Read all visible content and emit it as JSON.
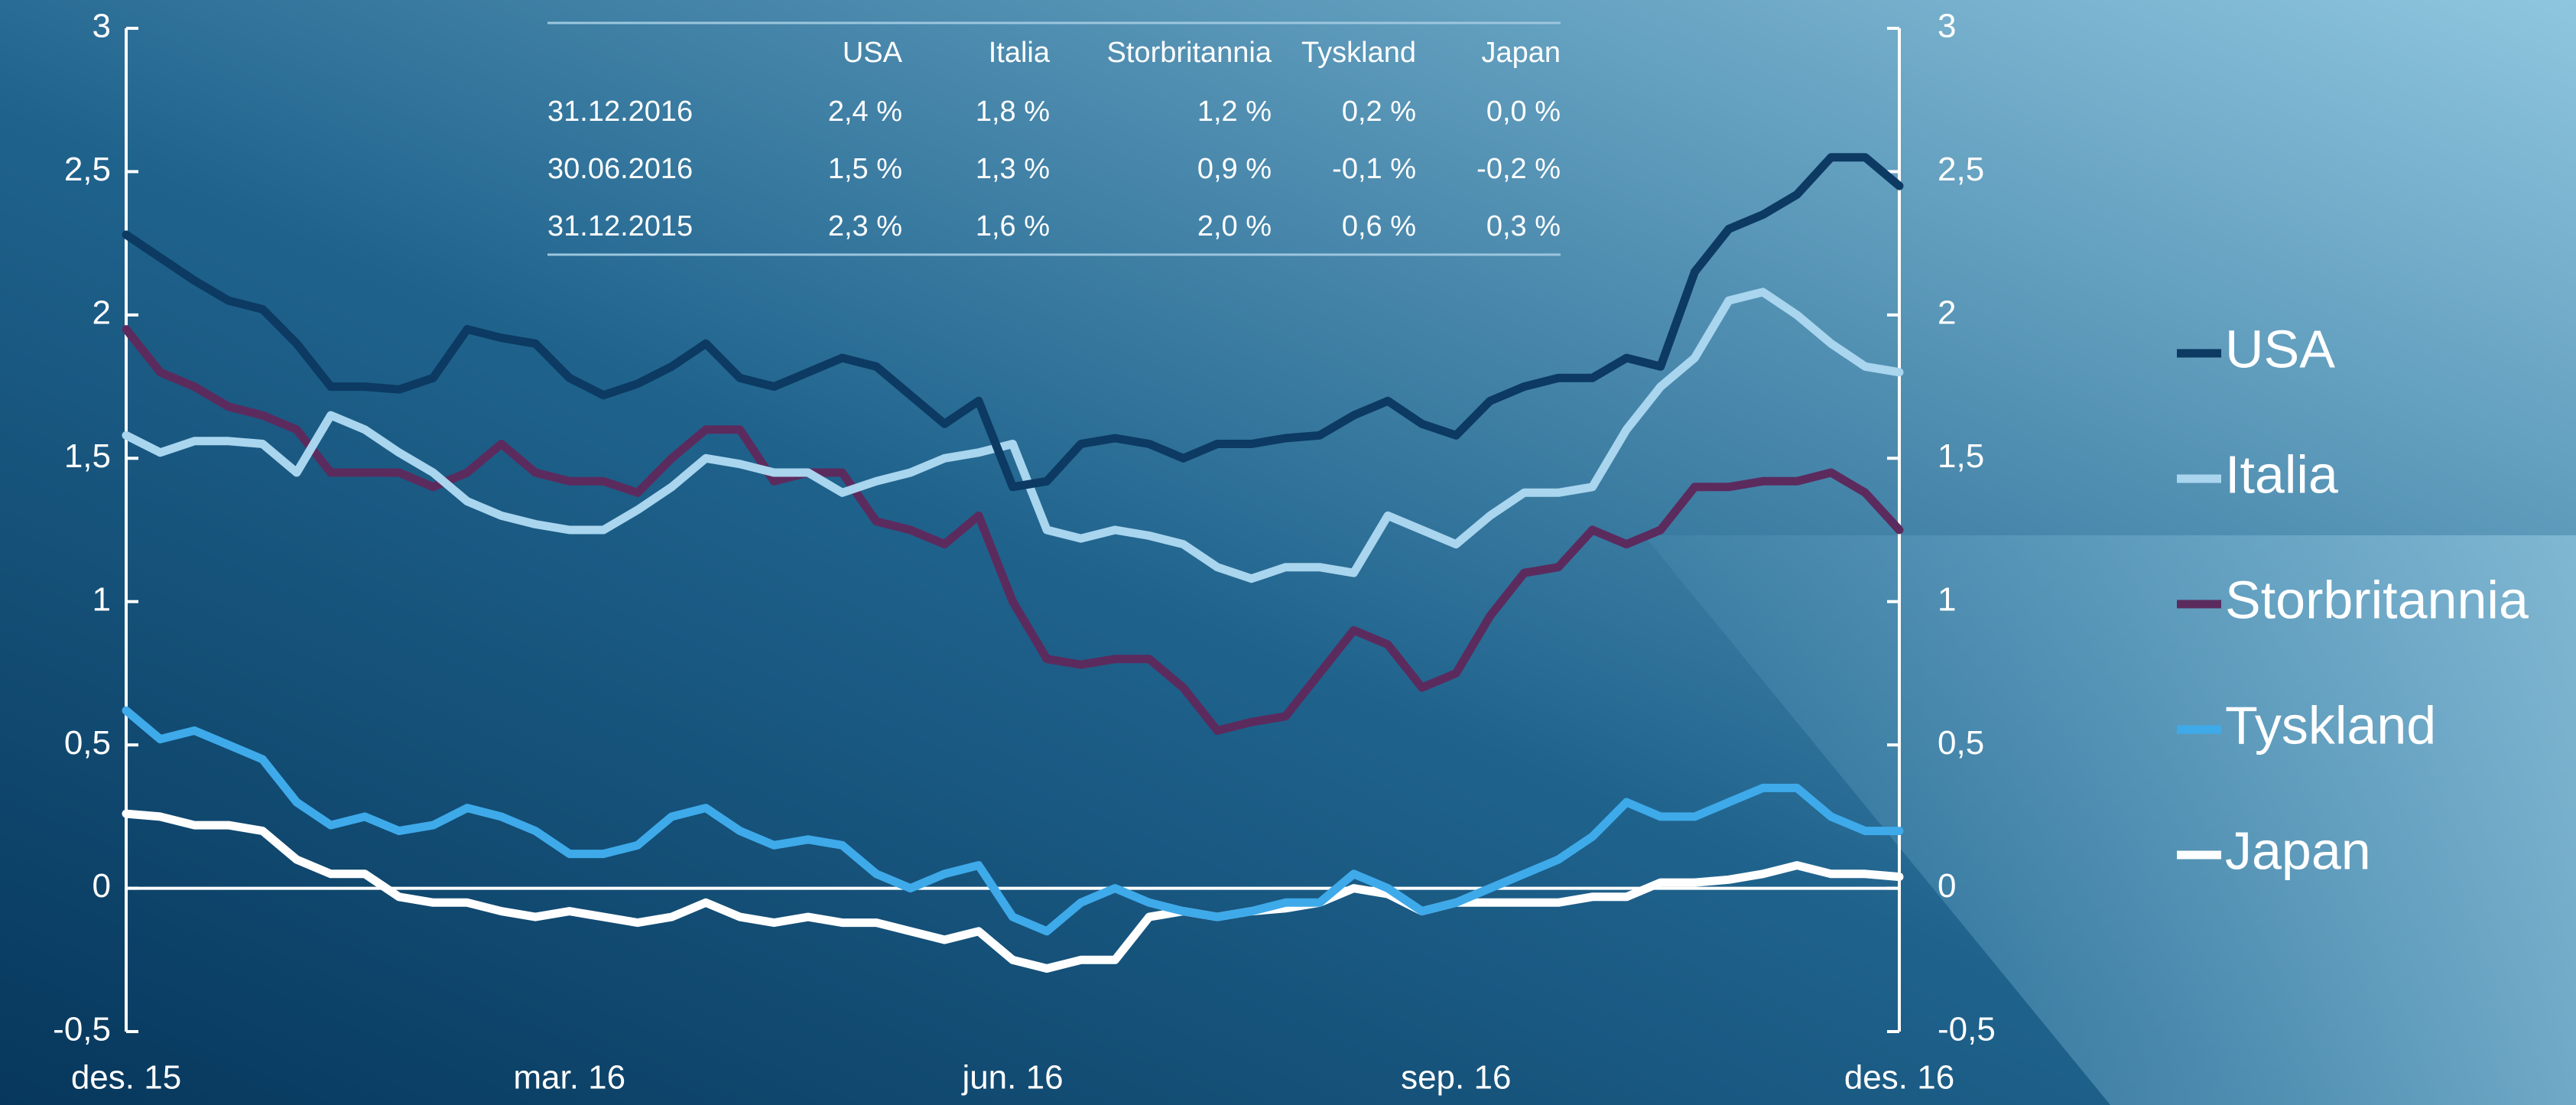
{
  "chart_data": {
    "type": "line",
    "categories": [
      "des. 15",
      null,
      null,
      null,
      null,
      null,
      null,
      null,
      null,
      null,
      null,
      null,
      null,
      "mar. 16",
      null,
      null,
      null,
      null,
      null,
      null,
      null,
      null,
      null,
      null,
      null,
      null,
      "jun. 16",
      null,
      null,
      null,
      null,
      null,
      null,
      null,
      null,
      null,
      null,
      null,
      null,
      "sep. 16",
      null,
      null,
      null,
      null,
      null,
      null,
      null,
      null,
      null,
      null,
      null,
      null,
      "des. 16"
    ],
    "ylim": [
      -0.5,
      3
    ],
    "yticks": [
      {
        "value": -0.5,
        "label": "-0,5"
      },
      0,
      {
        "value": 0.5,
        "label": "0,5"
      },
      1,
      {
        "value": 1.5,
        "label": "1,5"
      },
      2,
      {
        "value": 2.5,
        "label": "2,5"
      },
      3
    ],
    "y2lim": [
      -0.5,
      3
    ],
    "y2ticks": [
      {
        "value": -0.5,
        "label": "-0,5"
      },
      0,
      {
        "value": 0.5,
        "label": "0,5"
      },
      1,
      {
        "value": 1.5,
        "label": "1,5"
      },
      2,
      {
        "value": 2.5,
        "label": "2,5"
      },
      3
    ],
    "legend": "right",
    "series": [
      {
        "name": "USA",
        "color": "#0c3a62",
        "values": [
          2.28,
          2.2,
          2.12,
          2.05,
          2.02,
          1.9,
          1.75,
          1.75,
          1.74,
          1.78,
          1.95,
          1.92,
          1.9,
          1.78,
          1.72,
          1.76,
          1.82,
          1.9,
          1.78,
          1.75,
          1.8,
          1.85,
          1.82,
          1.72,
          1.62,
          1.7,
          1.4,
          1.42,
          1.55,
          1.57,
          1.55,
          1.5,
          1.55,
          1.55,
          1.57,
          1.58,
          1.65,
          1.7,
          1.62,
          1.58,
          1.7,
          1.75,
          1.78,
          1.78,
          1.85,
          1.82,
          2.15,
          2.3,
          2.35,
          2.42,
          2.55,
          2.55,
          2.45
        ]
      },
      {
        "name": "Italia",
        "color": "#a9d5ee",
        "values": [
          1.58,
          1.52,
          1.56,
          1.56,
          1.55,
          1.45,
          1.65,
          1.6,
          1.52,
          1.45,
          1.35,
          1.3,
          1.27,
          1.25,
          1.25,
          1.32,
          1.4,
          1.5,
          1.48,
          1.45,
          1.45,
          1.38,
          1.42,
          1.45,
          1.5,
          1.52,
          1.55,
          1.25,
          1.22,
          1.25,
          1.23,
          1.2,
          1.12,
          1.08,
          1.12,
          1.12,
          1.1,
          1.3,
          1.25,
          1.2,
          1.3,
          1.38,
          1.38,
          1.4,
          1.6,
          1.75,
          1.85,
          2.05,
          2.08,
          2.0,
          1.9,
          1.82,
          1.8
        ]
      },
      {
        "name": "Storbritannia",
        "color": "#5c2b5e",
        "values": [
          1.95,
          1.8,
          1.75,
          1.68,
          1.65,
          1.6,
          1.45,
          1.45,
          1.45,
          1.4,
          1.45,
          1.55,
          1.45,
          1.42,
          1.42,
          1.38,
          1.5,
          1.6,
          1.6,
          1.42,
          1.45,
          1.45,
          1.28,
          1.25,
          1.2,
          1.3,
          1.0,
          0.8,
          0.78,
          0.8,
          0.8,
          0.7,
          0.55,
          0.58,
          0.6,
          0.75,
          0.9,
          0.85,
          0.7,
          0.75,
          0.95,
          1.1,
          1.12,
          1.25,
          1.2,
          1.25,
          1.4,
          1.4,
          1.42,
          1.42,
          1.45,
          1.38,
          1.25
        ]
      },
      {
        "name": "Tyskland",
        "color": "#3eaaea",
        "values": [
          0.62,
          0.52,
          0.55,
          0.5,
          0.45,
          0.3,
          0.22,
          0.25,
          0.2,
          0.22,
          0.28,
          0.25,
          0.2,
          0.12,
          0.12,
          0.15,
          0.25,
          0.28,
          0.2,
          0.15,
          0.17,
          0.15,
          0.05,
          0.0,
          0.05,
          0.08,
          -0.1,
          -0.15,
          -0.05,
          0.0,
          -0.05,
          -0.08,
          -0.1,
          -0.08,
          -0.05,
          -0.05,
          0.05,
          0.0,
          -0.08,
          -0.05,
          0.0,
          0.05,
          0.1,
          0.18,
          0.3,
          0.25,
          0.25,
          0.3,
          0.35,
          0.35,
          0.25,
          0.2,
          0.2
        ]
      },
      {
        "name": "Japan",
        "color": "#ffffff",
        "values": [
          0.26,
          0.25,
          0.22,
          0.22,
          0.2,
          0.1,
          0.05,
          0.05,
          -0.03,
          -0.05,
          -0.05,
          -0.08,
          -0.1,
          -0.08,
          -0.1,
          -0.12,
          -0.1,
          -0.05,
          -0.1,
          -0.12,
          -0.1,
          -0.12,
          -0.12,
          -0.15,
          -0.18,
          -0.15,
          -0.25,
          -0.28,
          -0.25,
          -0.25,
          -0.1,
          -0.08,
          -0.1,
          -0.08,
          -0.07,
          -0.05,
          0.0,
          -0.02,
          -0.08,
          -0.05,
          -0.05,
          -0.05,
          -0.05,
          -0.03,
          -0.03,
          0.02,
          0.02,
          0.03,
          0.05,
          0.08,
          0.05,
          0.05,
          0.04
        ]
      }
    ],
    "table": {
      "columns": [
        "USA",
        "Italia",
        "Storbritannia",
        "Tyskland",
        "Japan"
      ],
      "rows": [
        [
          "31.12.2016",
          "2,4 %",
          "1,8 %",
          "1,2 %",
          "0,2 %",
          "0,0 %"
        ],
        [
          "30.06.2016",
          "1,5 %",
          "1,3 %",
          "0,9 %",
          "-0,1 %",
          "-0,2 %"
        ],
        [
          "31.12.2015",
          "2,3 %",
          "1,6 %",
          "2,0 %",
          "0,6 %",
          "0,3 %"
        ]
      ]
    }
  }
}
